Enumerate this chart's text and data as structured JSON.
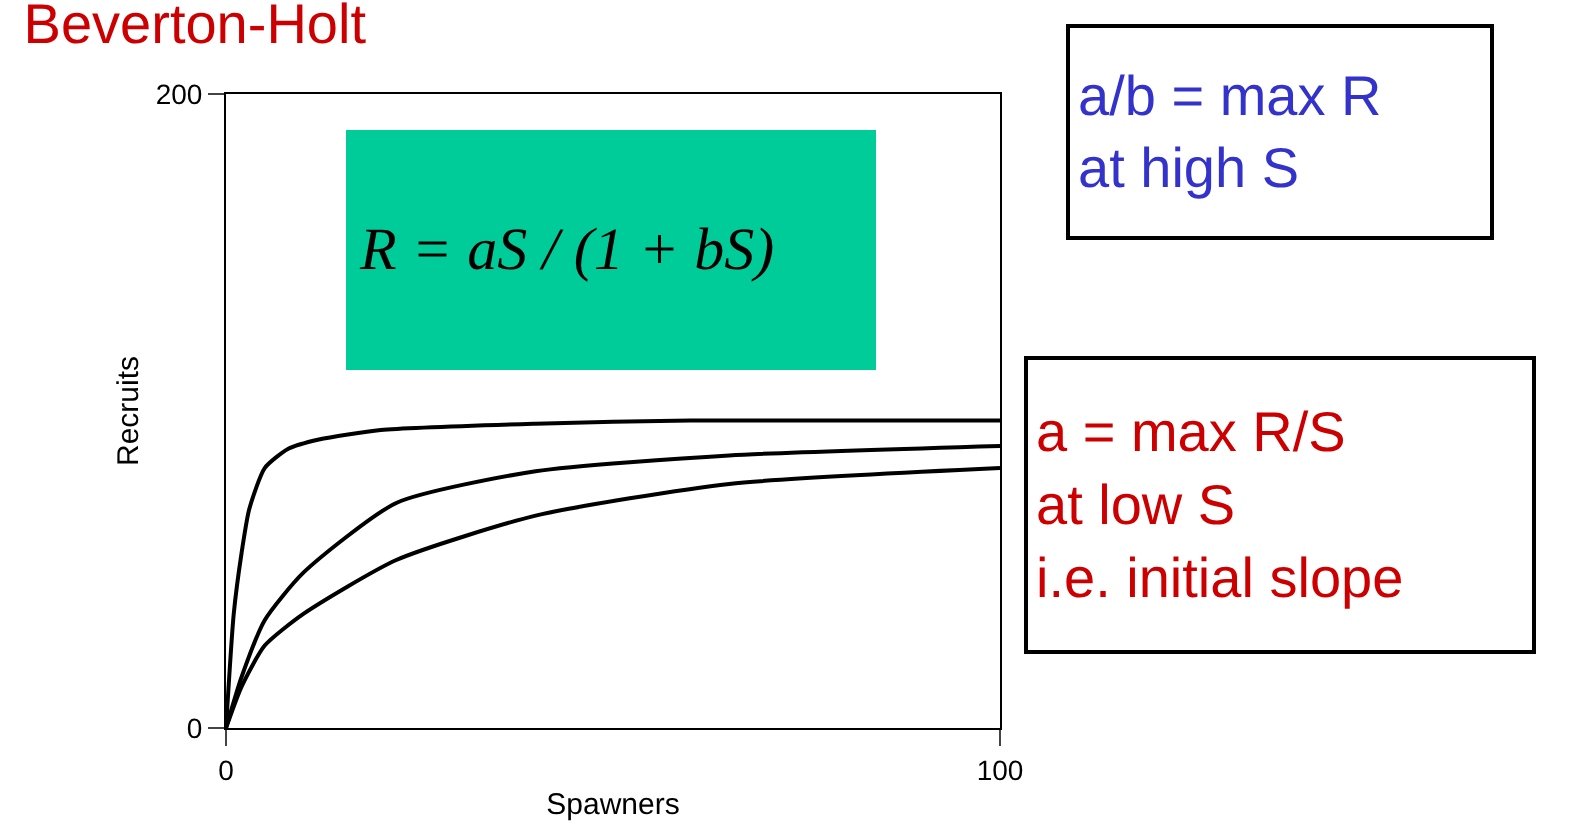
{
  "chart_data": {
    "type": "line",
    "title": "Beverton-Holt",
    "xlabel": "Spawners",
    "ylabel": "Recruits",
    "xlim": [
      0,
      100
    ],
    "ylim": [
      0,
      200
    ],
    "xticks": [
      0,
      100
    ],
    "yticks": [
      0,
      200
    ],
    "marker": "none",
    "line_style": "solid",
    "annotations": [
      "R = aS / (1 + bS)",
      "a/b = max R\nat high S",
      "a = max R/S\nat low S\ni.e. initial slope"
    ],
    "series": [
      {
        "color": "#000000",
        "x": [
          0,
          1,
          2,
          3,
          5,
          8,
          12,
          20,
          40,
          60,
          80,
          100
        ],
        "values": [
          0,
          36,
          55,
          69,
          82,
          88,
          91,
          94,
          96,
          97,
          97,
          97
        ]
      },
      {
        "color": "#000000",
        "x": [
          0,
          2,
          5,
          10,
          22,
          40,
          65,
          100
        ],
        "values": [
          0,
          16,
          34,
          49,
          71,
          81,
          86,
          89
        ]
      },
      {
        "color": "#000000",
        "x": [
          0,
          2,
          5,
          10,
          22,
          40,
          65,
          100
        ],
        "values": [
          0,
          13,
          26,
          36,
          53,
          67,
          77,
          82
        ]
      }
    ]
  }
}
